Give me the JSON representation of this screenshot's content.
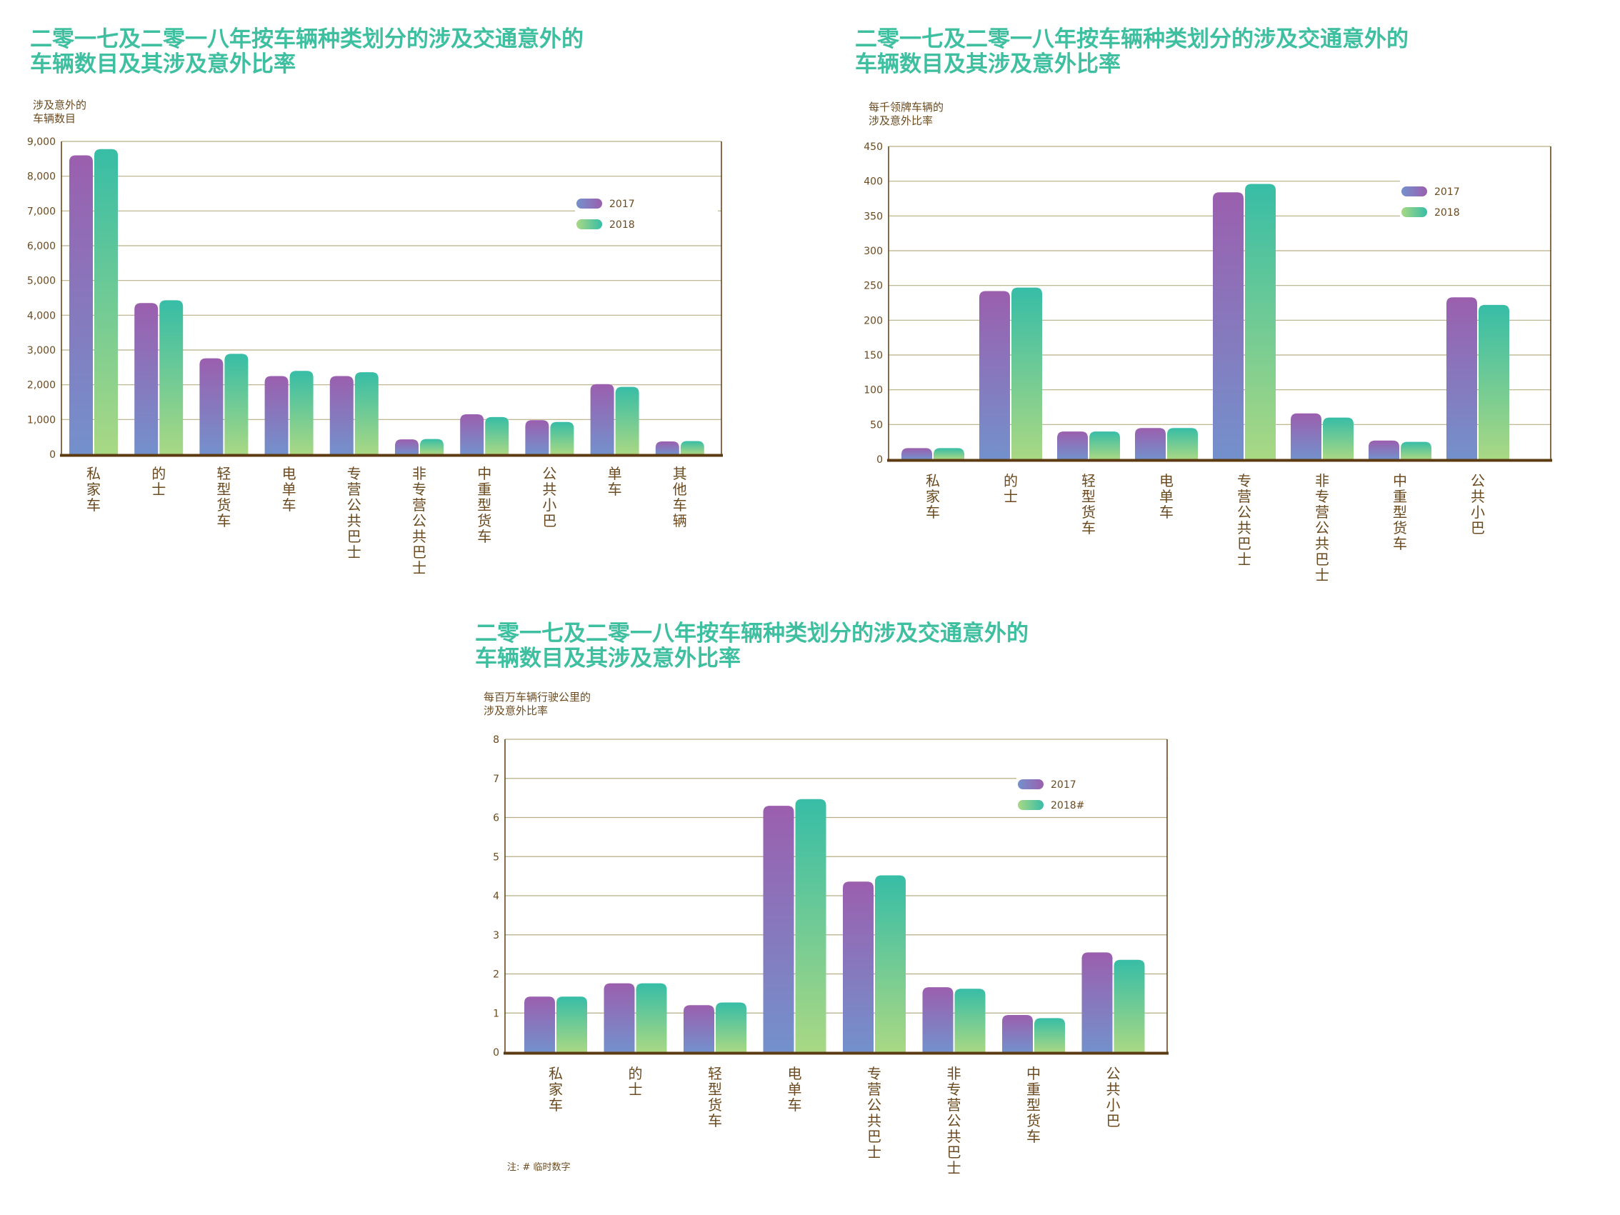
{
  "colors": {
    "title": "#3dbfa0",
    "axis_text": "#6b4a1f",
    "axis_line": "#5c3b12",
    "gridline": "#b7ad85",
    "s2017_top": "#9b5fae",
    "s2017_bottom": "#7391cc",
    "s2018_top": "#37bda6",
    "s2018_bottom": "#a9d884"
  },
  "chart_data": [
    {
      "type": "bar",
      "title": "二零一七及二零一八年按车辆种类划分的涉及交通意外的车辆数目及其涉及意外比率",
      "ylabel": "涉及意外的车辆数目",
      "ylim": [
        0,
        9000
      ],
      "yticks": [
        0,
        1000,
        2000,
        3000,
        4000,
        5000,
        6000,
        7000,
        8000,
        9000
      ],
      "ytick_labels": [
        "0",
        "1,000",
        "2,000",
        "3,000",
        "4,000",
        "5,000",
        "6,000",
        "7,000",
        "8,000",
        "9,000"
      ],
      "categories": [
        "私家车",
        "的士",
        "轻型货车",
        "电单车",
        "专营公共巴士",
        "非专营公共巴士",
        "中重型货车",
        "公共小巴",
        "单车",
        "其他车辆"
      ],
      "series": [
        {
          "name": "2017",
          "values": [
            8600,
            4350,
            2760,
            2250,
            2250,
            430,
            1150,
            980,
            2020,
            370
          ]
        },
        {
          "name": "2018",
          "values": [
            8780,
            4430,
            2890,
            2400,
            2360,
            440,
            1070,
            930,
            1940,
            380
          ]
        }
      ],
      "grid": true,
      "legend": "top-right"
    },
    {
      "type": "bar",
      "title": "二零一七及二零一八年按车辆种类划分的涉及交通意外的车辆数目及其涉及意外比率",
      "ylabel": "每千领牌车辆的涉及意外比率",
      "ylim": [
        0,
        450
      ],
      "yticks": [
        0,
        50,
        100,
        150,
        200,
        250,
        300,
        350,
        400,
        450
      ],
      "ytick_labels": [
        "0",
        "50",
        "100",
        "150",
        "200",
        "250",
        "300",
        "350",
        "400",
        "450"
      ],
      "categories": [
        "私家车",
        "的士",
        "轻型货车",
        "电单车",
        "专营公共巴士",
        "非专营公共巴士",
        "中重型货车",
        "公共小巴"
      ],
      "series": [
        {
          "name": "2017",
          "values": [
            16,
            242,
            40,
            45,
            384,
            66,
            27,
            233
          ]
        },
        {
          "name": "2018",
          "values": [
            16,
            247,
            40,
            45,
            396,
            60,
            25,
            222
          ]
        }
      ],
      "grid": true,
      "legend": "top-right"
    },
    {
      "type": "bar",
      "title": "二零一七及二零一八年按车辆种类划分的涉及交通意外的车辆数目及其涉及意外比率",
      "ylabel": "每百万车辆行驶公里的涉及意外比率",
      "ylim": [
        0,
        8
      ],
      "yticks": [
        0,
        1,
        2,
        3,
        4,
        5,
        6,
        7,
        8
      ],
      "ytick_labels": [
        "0",
        "1",
        "2",
        "3",
        "4",
        "5",
        "6",
        "7",
        "8"
      ],
      "categories": [
        "私家车",
        "的士",
        "轻型货车",
        "电单车",
        "专营公共巴士",
        "非专营公共巴士",
        "中重型货车",
        "公共小巴"
      ],
      "series": [
        {
          "name": "2017",
          "values": [
            1.42,
            1.76,
            1.2,
            6.3,
            4.36,
            1.66,
            0.95,
            2.55
          ]
        },
        {
          "name": "2018#",
          "values": [
            1.42,
            1.76,
            1.27,
            6.47,
            4.52,
            1.62,
            0.87,
            2.36
          ]
        }
      ],
      "grid": true,
      "legend": "top-right",
      "note": "注: # 临时数字"
    }
  ],
  "panels": [
    {
      "title_line1": "二零一七及二零一八年按车辆种类划分的涉及交通意外的",
      "title_line2": "车辆数目及其涉及意外比率",
      "ylabel_line1": "涉及意外的",
      "ylabel_line2": "车辆数目"
    },
    {
      "title_line1": "二零一七及二零一八年按车辆种类划分的涉及交通意外的",
      "title_line2": "车辆数目及其涉及意外比率",
      "ylabel_line1": "每千领牌车辆的",
      "ylabel_line2": "涉及意外比率"
    },
    {
      "title_line1": "二零一七及二零一八年按车辆种类划分的涉及交通意外的",
      "title_line2": "车辆数目及其涉及意外比率",
      "ylabel_line1": "每百万车辆行驶公里的",
      "ylabel_line2": "涉及意外比率"
    }
  ]
}
